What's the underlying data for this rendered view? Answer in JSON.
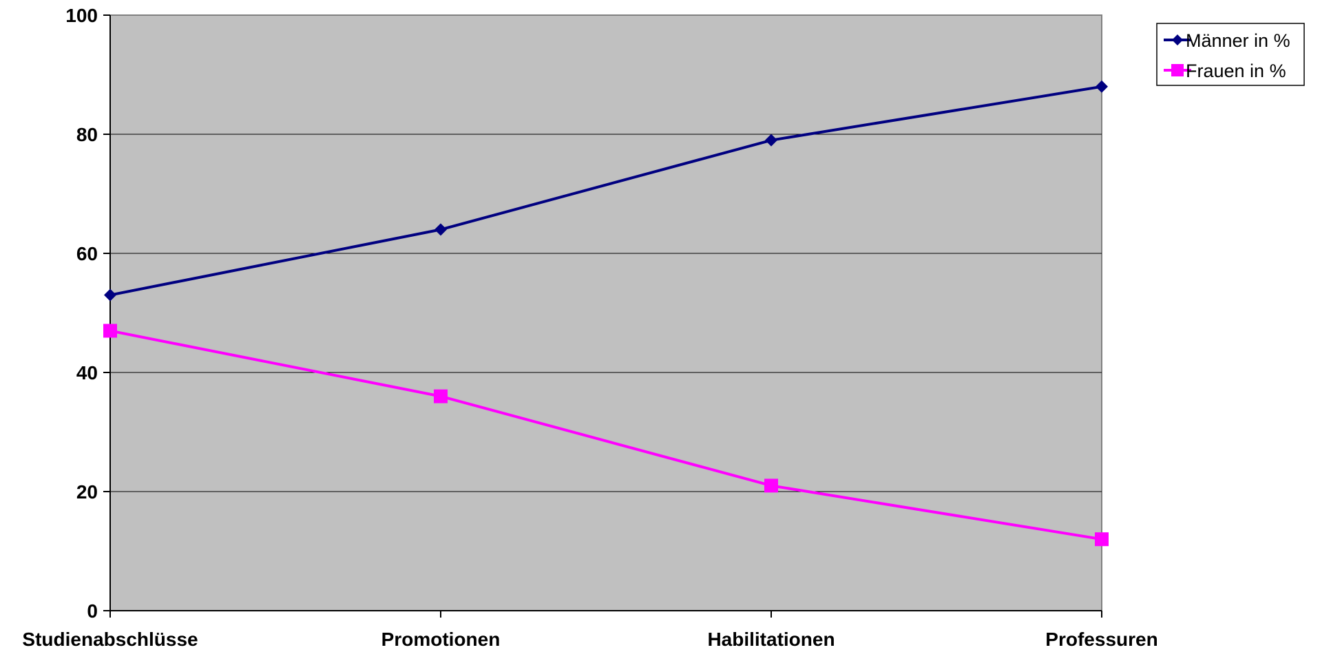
{
  "chart_data": {
    "type": "line",
    "title": "",
    "xlabel": "",
    "ylabel": "",
    "categories": [
      "Studienabschlüsse",
      "Promotionen",
      "Habilitationen",
      "Professuren"
    ],
    "series": [
      {
        "name": "Männer in %",
        "values": [
          53,
          64,
          79,
          88
        ],
        "color": "#000080",
        "marker": "diamond"
      },
      {
        "name": "Frauen in %",
        "values": [
          47,
          36,
          21,
          12
        ],
        "color": "#ff00ff",
        "marker": "square"
      }
    ],
    "ylim": [
      0,
      100
    ],
    "yticks": [
      0,
      20,
      40,
      60,
      80,
      100
    ],
    "grid": true,
    "plot_background": "#c0c0c0",
    "legend_position": "top-right"
  }
}
